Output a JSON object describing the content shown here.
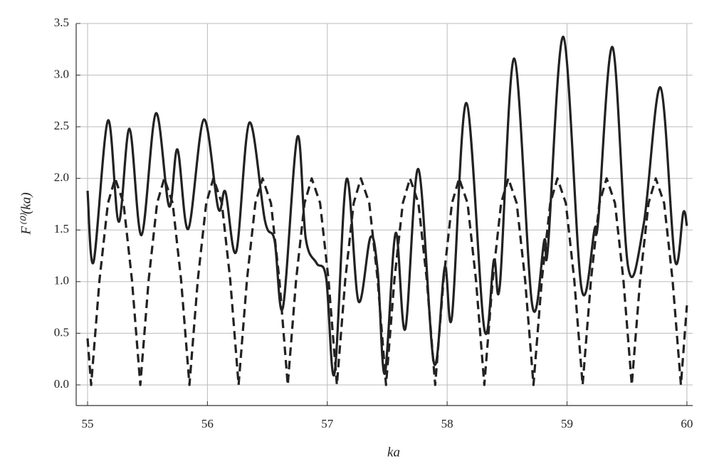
{
  "chart_data": {
    "type": "line",
    "x_label": "ka",
    "y_label": "F⁽⁰⁾(ka)",
    "xlim": [
      54.905,
      60.048
    ],
    "ylim": [
      -0.2,
      3.5
    ],
    "xticks": [
      55,
      56,
      57,
      58,
      59,
      60
    ],
    "yticks": [
      {
        "value": 0,
        "label": "0.0"
      },
      0.5,
      {
        "value": 1,
        "label": "1.0"
      },
      1.5,
      {
        "value": 2,
        "label": "2.0"
      },
      2.5,
      {
        "value": 3,
        "label": "3.0"
      },
      3.5
    ],
    "grid": true,
    "series": [
      {
        "color": "#222222",
        "style": "solid",
        "x": [
          55.0,
          55.05,
          55.17,
          55.26,
          55.35,
          55.45,
          55.57,
          55.68,
          55.75,
          55.84,
          55.97,
          56.09,
          56.15,
          56.24,
          56.35,
          56.48,
          56.56,
          56.63,
          56.75,
          56.82,
          56.91,
          56.99,
          57.06,
          57.16,
          57.26,
          57.36,
          57.42,
          57.48,
          57.57,
          57.65,
          57.76,
          57.89,
          57.98,
          58.04,
          58.16,
          58.31,
          58.39,
          58.44,
          58.56,
          58.71,
          58.81,
          58.84,
          58.97,
          59.12,
          59.23,
          59.26,
          59.38,
          59.51,
          59.64,
          59.78,
          59.9,
          59.97,
          60.0
        ],
        "values": [
          1.88,
          1.19,
          2.56,
          1.58,
          2.48,
          1.45,
          2.63,
          1.73,
          2.28,
          1.51,
          2.57,
          1.71,
          1.87,
          1.29,
          2.54,
          1.59,
          1.4,
          0.75,
          2.4,
          1.42,
          1.18,
          1.04,
          0.11,
          1.99,
          0.81,
          1.43,
          1.11,
          0.11,
          1.47,
          0.54,
          2.09,
          0.21,
          1.14,
          0.66,
          2.73,
          0.54,
          1.21,
          0.97,
          3.16,
          0.77,
          1.4,
          1.32,
          3.37,
          0.94,
          1.51,
          1.59,
          3.27,
          1.14,
          1.56,
          2.88,
          1.21,
          1.67,
          1.54
        ]
      },
      {
        "color": "#222222",
        "style": "dashed",
        "x": [
          55.0,
          55.03,
          55.1,
          55.17,
          55.23,
          55.3,
          55.37,
          55.44,
          55.51,
          55.58,
          55.64,
          55.71,
          55.78,
          55.85,
          55.92,
          55.99,
          56.05,
          56.12,
          56.19,
          56.26,
          56.33,
          56.4,
          56.46,
          56.53,
          56.6,
          56.67,
          56.74,
          56.81,
          56.87,
          56.94,
          57.01,
          57.08,
          57.15,
          57.22,
          57.28,
          57.35,
          57.42,
          57.49,
          57.56,
          57.63,
          57.69,
          57.76,
          57.83,
          57.9,
          57.97,
          58.04,
          58.1,
          58.17,
          58.24,
          58.31,
          58.38,
          58.45,
          58.51,
          58.58,
          58.65,
          58.72,
          58.79,
          58.86,
          58.92,
          58.99,
          59.06,
          59.13,
          59.2,
          59.27,
          59.33,
          59.4,
          59.47,
          59.54,
          59.61,
          59.68,
          59.74,
          59.81,
          59.88,
          59.95,
          60.0
        ],
        "values": [
          0.45,
          0,
          1.02,
          1.76,
          2,
          1.76,
          1.02,
          0,
          1.02,
          1.76,
          2,
          1.76,
          1.02,
          0,
          1.02,
          1.76,
          2,
          1.76,
          1.02,
          0,
          1.02,
          1.76,
          2,
          1.76,
          1.02,
          0,
          1.02,
          1.76,
          2,
          1.76,
          1.02,
          0,
          1.02,
          1.76,
          2,
          1.76,
          1.02,
          0,
          1.02,
          1.76,
          2,
          1.76,
          1.02,
          0,
          1.02,
          1.76,
          2,
          1.76,
          1.02,
          0,
          1.02,
          1.76,
          2,
          1.76,
          1.02,
          0,
          1.02,
          1.76,
          2,
          1.76,
          1.02,
          0,
          1.02,
          1.76,
          2,
          1.76,
          1.02,
          0,
          1.02,
          1.76,
          2,
          1.76,
          1.02,
          0,
          0.77
        ]
      }
    ]
  }
}
